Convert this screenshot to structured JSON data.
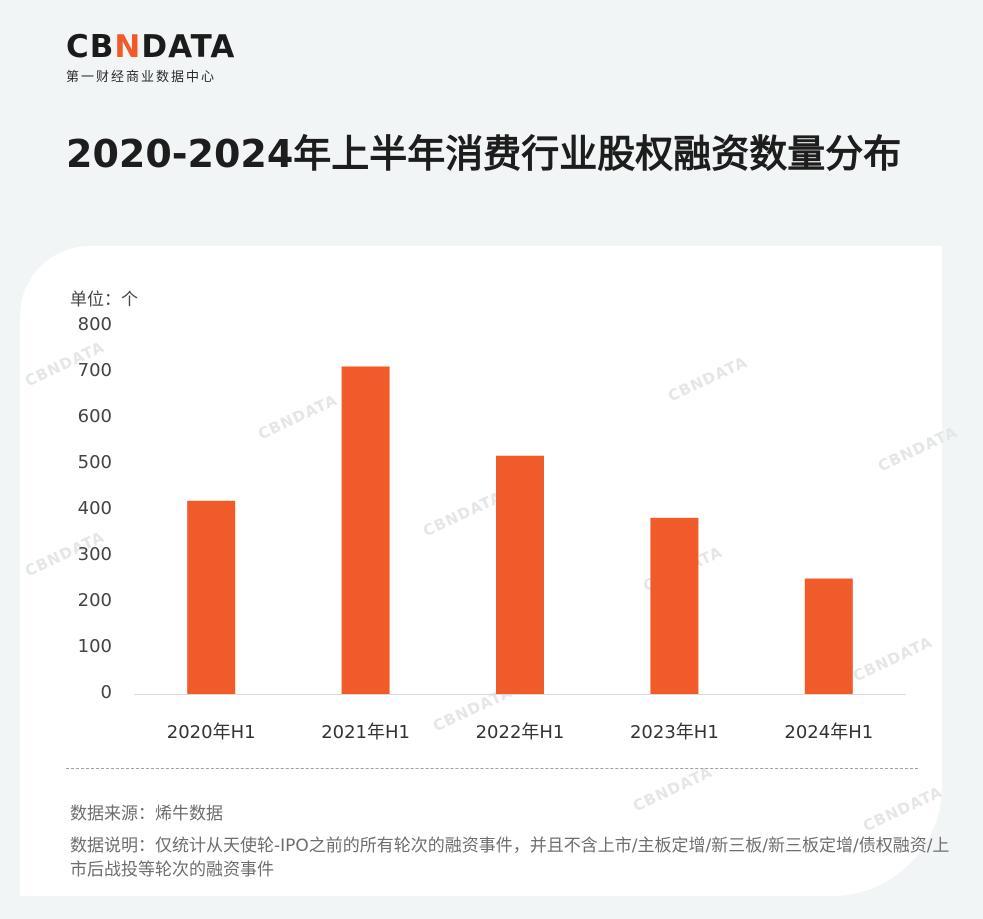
{
  "brand": {
    "logo_left": "CB",
    "logo_n": "N",
    "logo_right": "DATA",
    "tagline": "第一财经商业数据中心",
    "watermark": "CBNDATA",
    "accent_color": "#f15b2a"
  },
  "title": "2020-2024年上半年消费行业股权融资数量分布",
  "unit_label": "单位：个",
  "chart_data": {
    "type": "bar",
    "title": "2020-2024年上半年消费行业股权融资数量分布",
    "categories": [
      "2020年H1",
      "2021年H1",
      "2022年H1",
      "2023年H1",
      "2024年H1"
    ],
    "values": [
      420,
      712,
      518,
      383,
      251
    ],
    "ylim": [
      0,
      800
    ],
    "yticks": [
      "0",
      "100",
      "200",
      "300",
      "400",
      "500",
      "600",
      "700",
      "800"
    ],
    "xlabel": "",
    "ylabel": "单位：个",
    "bar_color": "#f15b2a",
    "grid": false
  },
  "source": "数据来源：烯牛数据",
  "note": "数据说明：仅统计从天使轮-IPO之前的所有轮次的融资事件，并且不含上市/主板定增/新三板/新三板定增/债权融资/上市后战投等轮次的融资事件"
}
